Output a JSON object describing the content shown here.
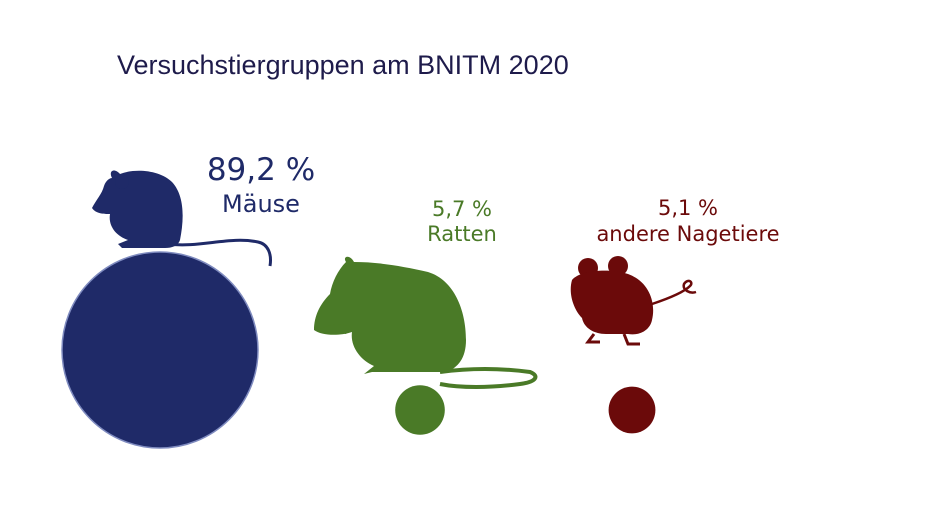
{
  "title": "Versuchstiergruppen am BNITM 2020",
  "colors": {
    "maeuse": "#1f2a68",
    "ratten": "#4a7a27",
    "andere": "#6b0a0a",
    "title": "#1e1b4b"
  },
  "chart_data": {
    "type": "bubble",
    "title": "Versuchstiergruppen am BNITM 2020",
    "unit": "%",
    "series": [
      {
        "name": "Mäuse",
        "value": 89.2,
        "value_label": "89,2 %",
        "icon": "mouse-silhouette-icon",
        "color": "#1f2a68"
      },
      {
        "name": "Ratten",
        "value": 5.7,
        "value_label": "5,7 %",
        "icon": "rat-silhouette-icon",
        "color": "#4a7a27"
      },
      {
        "name": "andere Nagetiere",
        "value": 5.1,
        "value_label": "5,1 %",
        "icon": "rodent-silhouette-icon",
        "color": "#6b0a0a"
      }
    ]
  }
}
